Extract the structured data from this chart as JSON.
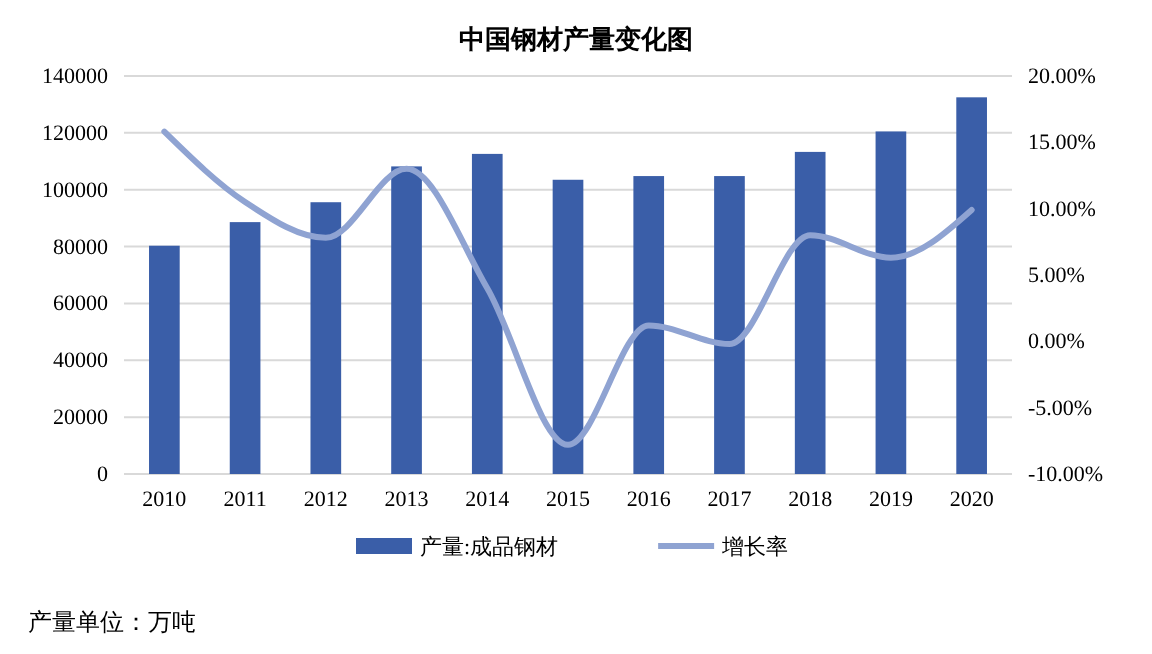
{
  "chart_data": {
    "type": "bar",
    "title": "中国钢材产量变化图",
    "categories": [
      "2010",
      "2011",
      "2012",
      "2013",
      "2014",
      "2015",
      "2016",
      "2017",
      "2018",
      "2019",
      "2020"
    ],
    "series": [
      {
        "name": "产量:成品钢材",
        "color": "#3a5ea8",
        "values": [
          80300,
          88600,
          95600,
          108200,
          112600,
          103500,
          104800,
          104800,
          113300,
          120500,
          132500
        ]
      },
      {
        "name": "增长率",
        "type": "line",
        "axis": "y2",
        "color": "#8fa3d2",
        "values": [
          15.8,
          10.5,
          7.8,
          13,
          4.0,
          -7.8,
          1.2,
          -0.2,
          8.0,
          6.3,
          9.9
        ]
      }
    ],
    "ylim": [
      0,
      140000
    ],
    "yticks": [
      0,
      20000,
      40000,
      60000,
      80000,
      100000,
      120000,
      140000
    ],
    "y2lim": [
      -10,
      20
    ],
    "y2ticks": [
      {
        "value": -10,
        "label": "-10.00%"
      },
      {
        "value": -5,
        "label": "-5.00%"
      },
      {
        "value": 0,
        "label": "0.00%"
      },
      {
        "value": 5,
        "label": "5.00%"
      },
      {
        "value": 10,
        "label": "10.00%"
      },
      {
        "value": 15,
        "label": "15.00%"
      },
      {
        "value": 20,
        "label": "20.00%"
      }
    ],
    "grid": "y",
    "legend": "bottom",
    "marker": "none",
    "line_style": "solid",
    "annotations": [
      "产量单位：万吨"
    ]
  }
}
